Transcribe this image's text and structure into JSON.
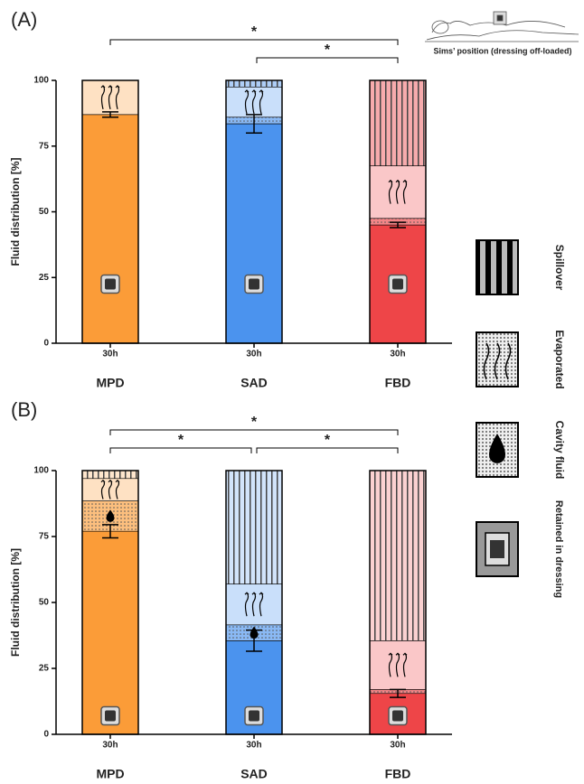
{
  "figure_caption": "Sims’ position (dressing off-loaded)",
  "legend": {
    "names": [
      "Spillover",
      "Evaporated",
      "Cavity fluid",
      "Retained in dressing"
    ]
  },
  "chart_data": [
    {
      "type": "bar",
      "stacked": true,
      "panel_label": "(A)",
      "ylabel": "Fluid distribution [%]",
      "categories": [
        "30h",
        "30h",
        "30h"
      ],
      "groups": [
        "MPD",
        "SAD",
        "FBD"
      ],
      "colors": [
        "#fb9c38",
        "#4b93ee",
        "#ee4548"
      ],
      "ylim": [
        0,
        100
      ],
      "yticks": [
        0,
        25,
        50,
        75,
        100
      ],
      "series": [
        {
          "name": "Retained in dressing",
          "pattern": "solid",
          "values": [
            87,
            83.5,
            45
          ],
          "errors": [
            1,
            3.5,
            1
          ]
        },
        {
          "name": "Cavity fluid",
          "pattern": "dots",
          "values": [
            0,
            2.5,
            2.5
          ]
        },
        {
          "name": "Evaporated",
          "pattern": "arrows",
          "values": [
            13,
            11.5,
            20
          ]
        },
        {
          "name": "Spillover",
          "pattern": "stripes",
          "values": [
            0,
            2.5,
            32.5
          ]
        }
      ],
      "significance": [
        {
          "between": [
            "MPD",
            "FBD"
          ],
          "label": "*"
        },
        {
          "between": [
            "SAD",
            "FBD"
          ],
          "label": "*"
        }
      ]
    },
    {
      "type": "bar",
      "stacked": true,
      "panel_label": "(B)",
      "ylabel": "Fluid distribution [%]",
      "categories": [
        "30h",
        "30h",
        "30h"
      ],
      "groups": [
        "MPD",
        "SAD",
        "FBD"
      ],
      "colors": [
        "#fb9c38",
        "#4b93ee",
        "#ee4548"
      ],
      "ylim": [
        0,
        100
      ],
      "yticks": [
        0,
        25,
        50,
        75,
        100
      ],
      "series": [
        {
          "pattern": "solid",
          "values": [
            77,
            35.5,
            15.5
          ],
          "errors": [
            2.5,
            4,
            1.5
          ]
        },
        {
          "pattern": "dots",
          "values": [
            11.5,
            6,
            1.5
          ]
        },
        {
          "pattern": "arrows",
          "values": [
            8.5,
            15.5,
            18.5
          ]
        },
        {
          "pattern": "stripes",
          "values": [
            3,
            43,
            64.5
          ]
        }
      ],
      "significance": [
        {
          "between": [
            "MPD",
            "FBD"
          ],
          "label": "*"
        },
        {
          "between": [
            "MPD",
            "SAD"
          ],
          "label": "*"
        },
        {
          "between": [
            "SAD",
            "FBD"
          ],
          "label": "*"
        }
      ]
    }
  ]
}
